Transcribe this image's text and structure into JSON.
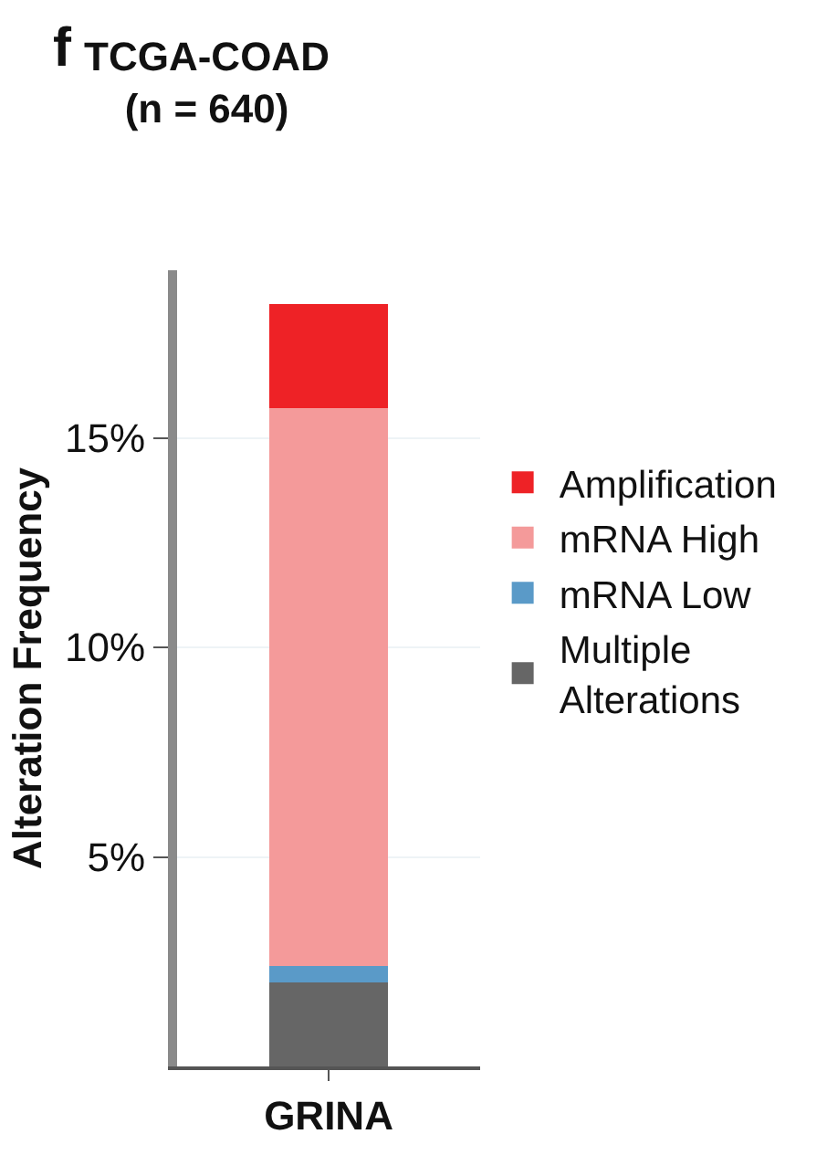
{
  "chart_data": {
    "type": "bar",
    "title": "TCGA-COAD\n(n = 640)",
    "ylabel": "Alteration Frequency",
    "categories": [
      "GRINA"
    ],
    "stacked": true,
    "series": [
      {
        "name": "Multiple Alterations",
        "color": "#666666",
        "values": [
          2.0
        ]
      },
      {
        "name": "mRNA Low",
        "color": "#5a9ac8",
        "values": [
          0.4
        ]
      },
      {
        "name": "mRNA High",
        "color": "#f49a9a",
        "values": [
          13.3
        ]
      },
      {
        "name": "Amplification",
        "color": "#ee2226",
        "values": [
          2.5
        ]
      }
    ],
    "ylim": [
      0,
      19
    ],
    "yticks": [
      {
        "value": 5,
        "label": "5%"
      },
      {
        "value": 10,
        "label": "10%"
      },
      {
        "value": 15,
        "label": "15%"
      }
    ],
    "grid": "y",
    "legend": "right",
    "annotations": [
      "f"
    ]
  }
}
